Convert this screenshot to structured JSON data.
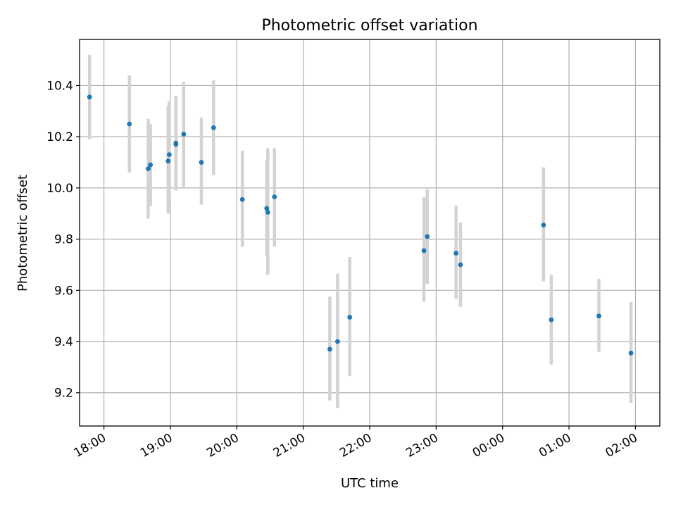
{
  "chart_data": {
    "type": "scatter",
    "title": "Photometric offset variation",
    "xlabel": "UTC time",
    "ylabel": "Photometric offset",
    "x_axis": {
      "type": "time",
      "start": "17:38",
      "end": "02:22",
      "end_next_day": true,
      "ticks": [
        "18:00",
        "19:00",
        "20:00",
        "21:00",
        "22:00",
        "23:00",
        "00:00",
        "01:00",
        "02:00"
      ]
    },
    "ylim": [
      9.07,
      10.58
    ],
    "yticks": [
      9.2,
      9.4,
      9.6,
      9.8,
      10.0,
      10.2,
      10.4
    ],
    "ytick_labels": [
      "9.2",
      "9.4",
      "9.6",
      "9.8",
      "10.0",
      "10.2",
      "10.4"
    ],
    "grid": true,
    "colors": {
      "points": "#1f77b4",
      "errorbars": "#d3d3d3",
      "grid": "#b0b0b0"
    },
    "points": [
      {
        "t": "17:47",
        "y": 10.355,
        "lo": 10.19,
        "hi": 10.52
      },
      {
        "t": "18:23",
        "y": 10.25,
        "lo": 10.06,
        "hi": 10.44
      },
      {
        "t": "18:40",
        "y": 10.075,
        "lo": 9.88,
        "hi": 10.27
      },
      {
        "t": "18:42",
        "y": 10.09,
        "lo": 9.93,
        "hi": 10.25
      },
      {
        "t": "18:58",
        "y": 10.105,
        "lo": 9.9,
        "hi": 10.32
      },
      {
        "t": "18:59",
        "y": 10.13,
        "lo": 9.95,
        "hi": 10.34
      },
      {
        "t": "19:05",
        "y": 10.17,
        "lo": 9.99,
        "hi": 10.36
      },
      {
        "t": "19:05",
        "y": 10.175,
        "lo": 10.0,
        "hi": 10.35
      },
      {
        "t": "19:12",
        "y": 10.21,
        "lo": 10.0,
        "hi": 10.415
      },
      {
        "t": "19:28",
        "y": 10.1,
        "lo": 9.935,
        "hi": 10.275
      },
      {
        "t": "19:39",
        "y": 10.235,
        "lo": 10.05,
        "hi": 10.42
      },
      {
        "t": "20:05",
        "y": 9.955,
        "lo": 9.77,
        "hi": 10.145
      },
      {
        "t": "20:27",
        "y": 9.92,
        "lo": 9.735,
        "hi": 10.11
      },
      {
        "t": "20:28",
        "y": 9.905,
        "lo": 9.66,
        "hi": 10.155
      },
      {
        "t": "20:34",
        "y": 9.965,
        "lo": 9.77,
        "hi": 10.155
      },
      {
        "t": "21:24",
        "y": 9.37,
        "lo": 9.17,
        "hi": 9.575
      },
      {
        "t": "21:31",
        "y": 9.4,
        "lo": 9.14,
        "hi": 9.665
      },
      {
        "t": "21:42",
        "y": 9.495,
        "lo": 9.265,
        "hi": 9.73
      },
      {
        "t": "22:49",
        "y": 9.755,
        "lo": 9.555,
        "hi": 9.965
      },
      {
        "t": "22:52",
        "y": 9.81,
        "lo": 9.625,
        "hi": 9.995
      },
      {
        "t": "23:18",
        "y": 9.745,
        "lo": 9.565,
        "hi": 9.93
      },
      {
        "t": "23:22",
        "y": 9.7,
        "lo": 9.535,
        "hi": 9.865
      },
      {
        "t": "00:37",
        "y": 9.855,
        "lo": 9.635,
        "hi": 10.08
      },
      {
        "t": "00:44",
        "y": 9.485,
        "lo": 9.31,
        "hi": 9.66
      },
      {
        "t": "01:27",
        "y": 9.5,
        "lo": 9.36,
        "hi": 9.645
      },
      {
        "t": "01:56",
        "y": 9.355,
        "lo": 9.16,
        "hi": 9.555
      }
    ]
  }
}
